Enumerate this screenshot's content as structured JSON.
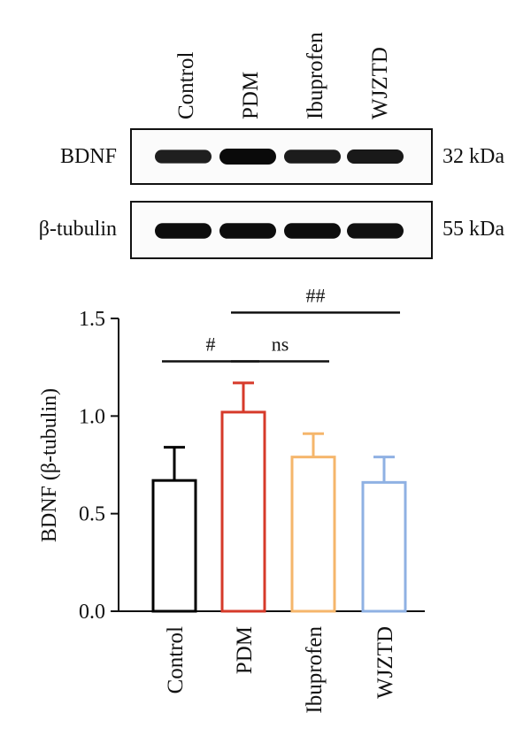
{
  "blot": {
    "lanes": [
      "Control",
      "PDM",
      "Ibuprofen",
      "WJZTD"
    ],
    "rows": [
      {
        "name": "BDNF",
        "size": "32 kDa",
        "band_intensity": [
          0.65,
          1.0,
          0.7,
          0.75
        ]
      },
      {
        "name": "β-tubulin",
        "size": "55 kDa",
        "band_intensity": [
          0.95,
          0.95,
          0.95,
          0.9
        ]
      }
    ]
  },
  "chart_data": {
    "type": "bar",
    "categories": [
      "Control",
      "PDM",
      "Ibuprofen",
      "WJZTD"
    ],
    "values": [
      0.67,
      1.02,
      0.79,
      0.66
    ],
    "errors": [
      0.17,
      0.15,
      0.12,
      0.13
    ],
    "colors": [
      "#000000",
      "#d63a2a",
      "#f5b66b",
      "#8fb1e3"
    ],
    "ylabel": "BDNF (β-tubulin)",
    "ylim": [
      0,
      1.5
    ],
    "yticks": [
      "0.0",
      "0.5",
      "1.0",
      "1.5"
    ],
    "significance": [
      {
        "from": 0,
        "to": 1,
        "label": "#",
        "level": 1.28
      },
      {
        "from": 1,
        "to": 2,
        "label": "ns",
        "level": 1.28
      },
      {
        "from": 1,
        "to": 3,
        "label": "##",
        "level": 1.53
      }
    ]
  }
}
